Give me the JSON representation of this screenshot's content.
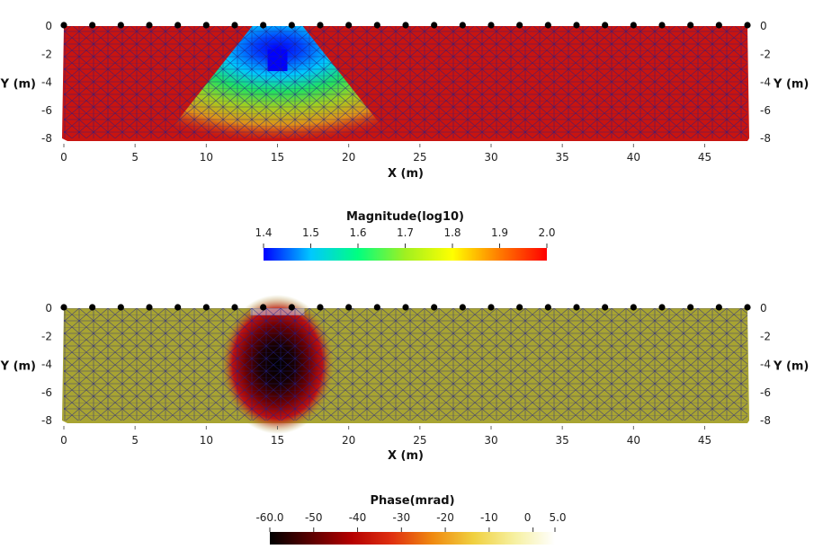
{
  "chart_data": [
    {
      "type": "heatmap",
      "xlabel": "X (m)",
      "ylabel": "Y (m)",
      "xlim": [
        0,
        48
      ],
      "ylim": [
        -8,
        0
      ],
      "xticks": [
        "0",
        "5",
        "10",
        "15",
        "20",
        "25",
        "30",
        "35",
        "40",
        "45"
      ],
      "yticks": [
        "0",
        "-2",
        "-4",
        "-6",
        "-8"
      ],
      "electrodes_x": [
        0,
        2,
        4,
        6,
        8,
        10,
        12,
        14,
        16,
        18,
        20,
        22,
        24,
        26,
        28,
        30,
        32,
        34,
        36,
        38,
        40,
        42,
        44,
        46,
        48
      ],
      "background_value": 2.0,
      "anomaly": {
        "x": 15,
        "y": -2.5,
        "value": 1.4,
        "shape": "triangle-plume",
        "width_at_base_m": 16
      },
      "colorbar": {
        "title": "Magnitude(log10)",
        "ticks": [
          "1.4",
          "1.5",
          "1.6",
          "1.7",
          "1.8",
          "1.9",
          "2.0"
        ],
        "range": [
          1.4,
          2.0
        ],
        "colors": [
          "#0000ff",
          "#00c8ff",
          "#00ff80",
          "#a0f020",
          "#ffff00",
          "#ff7b00",
          "#ff0000"
        ]
      },
      "field_color": "#c81410",
      "mesh_color": "#1e1e8a"
    },
    {
      "type": "heatmap",
      "xlabel": "X (m)",
      "ylabel": "Y (m)",
      "xlim": [
        0,
        48
      ],
      "ylim": [
        -8,
        0
      ],
      "xticks": [
        "0",
        "5",
        "10",
        "15",
        "20",
        "25",
        "30",
        "35",
        "40",
        "45"
      ],
      "yticks": [
        "0",
        "-2",
        "-4",
        "-6",
        "-8"
      ],
      "electrodes_x": [
        0,
        2,
        4,
        6,
        8,
        10,
        12,
        14,
        16,
        18,
        20,
        22,
        24,
        26,
        28,
        30,
        32,
        34,
        36,
        38,
        40,
        42,
        44,
        46,
        48
      ],
      "background_value": -15,
      "anomaly": {
        "x": 15,
        "y": -4,
        "value": -60,
        "shape": "circle",
        "radius_m": 3
      },
      "colorbar": {
        "title": "Phase(mrad)",
        "ticks": [
          "-60.0",
          "-50",
          "-40",
          "-30",
          "-20",
          "-10",
          "0",
          "5.0"
        ],
        "range": [
          -60,
          5
        ],
        "colors": [
          "#000000",
          "#5a0000",
          "#b40000",
          "#e03010",
          "#f08a10",
          "#f0d040",
          "#f6f0a0",
          "#ffffff"
        ]
      },
      "field_color": "#a8a432",
      "mesh_color": "#1e1e8a"
    }
  ]
}
